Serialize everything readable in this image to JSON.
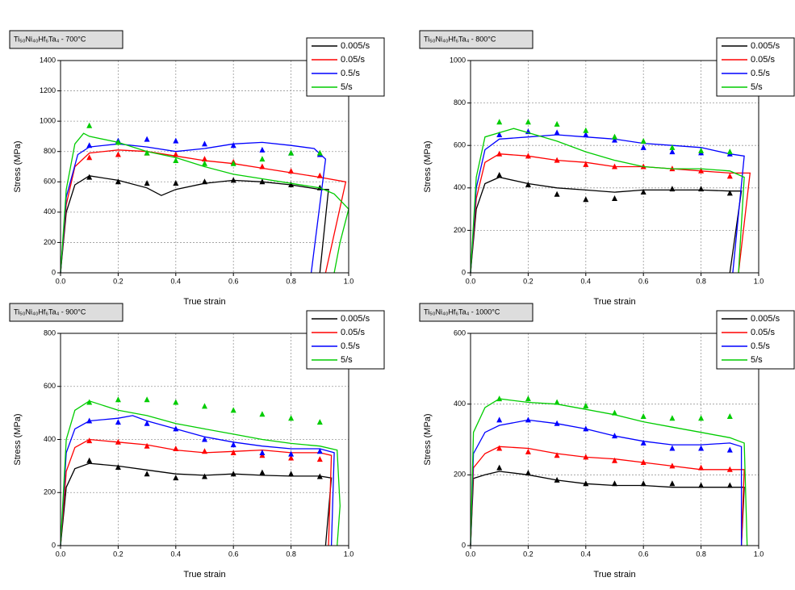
{
  "chart_data": [
    {
      "type": "line",
      "title": "Ti₅₀Ni₄₀Hf₆Ta₄ - 700°C",
      "x_label": "True strain",
      "y_label": "Stress (MPa)",
      "xlim": [
        0,
        1
      ],
      "xticks": [
        {
          "value": 0,
          "label": "0.0"
        },
        0.2,
        0.4,
        0.6,
        0.8,
        {
          "value": 1,
          "label": "1.0"
        }
      ],
      "ylim": [
        0,
        1400
      ],
      "yticks": [
        0,
        200,
        400,
        600,
        800,
        1000,
        1200,
        1400
      ],
      "grid": true,
      "points_x": [
        0.1,
        0.2,
        0.3,
        0.4,
        0.5,
        0.6,
        0.7,
        0.8,
        0.9
      ],
      "series": [
        {
          "name": "0.005/s",
          "color": "#000000",
          "x": [
            0,
            0.02,
            0.05,
            0.1,
            0.2,
            0.3,
            0.35,
            0.4,
            0.5,
            0.6,
            0.7,
            0.8,
            0.9,
            0.93,
            0.9
          ],
          "values": [
            0,
            400,
            580,
            640,
            610,
            560,
            510,
            550,
            590,
            610,
            600,
            580,
            550,
            550,
            0
          ],
          "points": [
            630,
            600,
            590,
            590,
            600,
            610,
            600,
            580,
            560
          ]
        },
        {
          "name": "0.05/s",
          "color": "#ff0000",
          "x": [
            0,
            0.02,
            0.05,
            0.1,
            0.2,
            0.3,
            0.4,
            0.5,
            0.6,
            0.7,
            0.8,
            0.9,
            0.99,
            0.92
          ],
          "values": [
            0,
            450,
            700,
            790,
            810,
            800,
            770,
            740,
            720,
            690,
            660,
            630,
            600,
            0
          ],
          "points": [
            760,
            780,
            790,
            780,
            750,
            730,
            700,
            670,
            640
          ]
        },
        {
          "name": "0.5/s",
          "color": "#0000ff",
          "x": [
            0,
            0.02,
            0.06,
            0.1,
            0.2,
            0.3,
            0.4,
            0.5,
            0.6,
            0.7,
            0.8,
            0.88,
            0.92,
            0.87
          ],
          "values": [
            0,
            500,
            780,
            830,
            850,
            830,
            800,
            820,
            850,
            860,
            840,
            820,
            750,
            0
          ],
          "points": [
            840,
            870,
            880,
            870,
            850,
            840,
            810,
            790,
            780
          ]
        },
        {
          "name": "5/s",
          "color": "#00cc00",
          "x": [
            0,
            0.02,
            0.05,
            0.08,
            0.1,
            0.2,
            0.3,
            0.4,
            0.5,
            0.6,
            0.7,
            0.8,
            0.9,
            0.95,
            1,
            0.97,
            0.95
          ],
          "values": [
            0,
            550,
            850,
            920,
            900,
            860,
            800,
            760,
            700,
            650,
            620,
            590,
            560,
            520,
            420,
            200,
            0
          ],
          "points": [
            970,
            860,
            790,
            740,
            720,
            720,
            750,
            790,
            790
          ]
        }
      ]
    },
    {
      "type": "line",
      "title": "Ti₅₀Ni₄₀Hf₆Ta₄ - 800°C",
      "x_label": "True strain",
      "y_label": "Stress (MPa)",
      "xlim": [
        0,
        1
      ],
      "xticks": [
        {
          "value": 0,
          "label": "0.0"
        },
        0.2,
        0.4,
        0.6,
        0.8,
        {
          "value": 1,
          "label": "1.0"
        }
      ],
      "ylim": [
        0,
        1000
      ],
      "yticks": [
        0,
        200,
        400,
        600,
        800,
        1000
      ],
      "grid": true,
      "points_x": [
        0.1,
        0.2,
        0.3,
        0.4,
        0.5,
        0.6,
        0.7,
        0.8,
        0.9
      ],
      "series": [
        {
          "name": "0.005/s",
          "color": "#000000",
          "x": [
            0,
            0.02,
            0.05,
            0.1,
            0.2,
            0.3,
            0.4,
            0.5,
            0.6,
            0.7,
            0.8,
            0.9,
            0.94,
            0.9
          ],
          "values": [
            0,
            300,
            420,
            450,
            420,
            400,
            390,
            380,
            390,
            390,
            390,
            385,
            385,
            0
          ],
          "points": [
            460,
            415,
            370,
            345,
            350,
            380,
            395,
            395,
            375
          ]
        },
        {
          "name": "0.05/s",
          "color": "#ff0000",
          "x": [
            0,
            0.02,
            0.05,
            0.1,
            0.2,
            0.3,
            0.4,
            0.5,
            0.6,
            0.7,
            0.8,
            0.9,
            0.97,
            0.93
          ],
          "values": [
            0,
            350,
            520,
            560,
            550,
            530,
            520,
            500,
            500,
            490,
            480,
            470,
            470,
            0
          ],
          "points": [
            560,
            550,
            530,
            510,
            500,
            500,
            490,
            480,
            455
          ]
        },
        {
          "name": "0.5/s",
          "color": "#0000ff",
          "x": [
            0,
            0.02,
            0.05,
            0.1,
            0.2,
            0.3,
            0.4,
            0.5,
            0.6,
            0.7,
            0.8,
            0.9,
            0.95,
            0.91
          ],
          "values": [
            0,
            400,
            580,
            630,
            640,
            650,
            640,
            630,
            610,
            600,
            590,
            560,
            550,
            0
          ],
          "points": [
            650,
            665,
            660,
            650,
            625,
            590,
            570,
            565,
            560
          ]
        },
        {
          "name": "5/s",
          "color": "#00cc00",
          "x": [
            0,
            0.02,
            0.05,
            0.1,
            0.15,
            0.2,
            0.3,
            0.4,
            0.5,
            0.6,
            0.7,
            0.8,
            0.9,
            0.95,
            0.93
          ],
          "values": [
            0,
            450,
            640,
            660,
            680,
            660,
            620,
            570,
            530,
            500,
            490,
            490,
            480,
            450,
            0
          ],
          "points": [
            710,
            710,
            700,
            670,
            640,
            620,
            590,
            575,
            570
          ]
        }
      ]
    },
    {
      "type": "line",
      "title": "Ti₅₀Ni₄₀Hf₆Ta₄ - 900°C",
      "x_label": "True strain",
      "y_label": "Stress (MPa)",
      "xlim": [
        0,
        1
      ],
      "xticks": [
        {
          "value": 0,
          "label": "0.0"
        },
        0.2,
        0.4,
        0.6,
        0.8,
        {
          "value": 1,
          "label": "1.0"
        }
      ],
      "ylim": [
        0,
        800
      ],
      "yticks": [
        0,
        200,
        400,
        600,
        800
      ],
      "grid": true,
      "points_x": [
        0.1,
        0.2,
        0.3,
        0.4,
        0.5,
        0.6,
        0.7,
        0.8,
        0.9
      ],
      "series": [
        {
          "name": "0.005/s",
          "color": "#000000",
          "x": [
            0,
            0.02,
            0.05,
            0.1,
            0.2,
            0.3,
            0.4,
            0.5,
            0.6,
            0.7,
            0.8,
            0.9,
            0.94,
            0.92
          ],
          "values": [
            0,
            220,
            290,
            310,
            300,
            285,
            270,
            265,
            270,
            265,
            262,
            262,
            255,
            0
          ],
          "points": [
            320,
            295,
            270,
            255,
            260,
            270,
            275,
            270,
            260
          ]
        },
        {
          "name": "0.05/s",
          "color": "#ff0000",
          "x": [
            0,
            0.02,
            0.05,
            0.1,
            0.2,
            0.3,
            0.4,
            0.5,
            0.6,
            0.7,
            0.8,
            0.9,
            0.94,
            0.93
          ],
          "values": [
            0,
            280,
            370,
            400,
            390,
            380,
            360,
            350,
            355,
            360,
            350,
            350,
            340,
            0
          ],
          "points": [
            395,
            390,
            375,
            365,
            355,
            350,
            340,
            330,
            325
          ]
        },
        {
          "name": "0.5/s",
          "color": "#0000ff",
          "x": [
            0,
            0.02,
            0.05,
            0.1,
            0.2,
            0.25,
            0.3,
            0.4,
            0.5,
            0.6,
            0.7,
            0.8,
            0.9,
            0.95,
            0.94
          ],
          "values": [
            0,
            350,
            440,
            470,
            480,
            490,
            470,
            440,
            410,
            390,
            375,
            365,
            365,
            350,
            0
          ],
          "points": [
            470,
            465,
            460,
            440,
            400,
            380,
            350,
            345,
            355
          ]
        },
        {
          "name": "5/s",
          "color": "#00cc00",
          "x": [
            0,
            0.02,
            0.05,
            0.1,
            0.2,
            0.3,
            0.4,
            0.5,
            0.6,
            0.7,
            0.8,
            0.9,
            0.96,
            0.97,
            0.96
          ],
          "values": [
            0,
            400,
            510,
            545,
            510,
            490,
            460,
            440,
            420,
            400,
            385,
            375,
            360,
            150,
            0
          ],
          "points": [
            540,
            550,
            550,
            540,
            525,
            510,
            495,
            480,
            465
          ]
        }
      ]
    },
    {
      "type": "line",
      "title": "Ti₅₀Ni₄₀Hf₆Ta₄ - 1000°C",
      "x_label": "True strain",
      "y_label": "Stress (MPa)",
      "xlim": [
        0,
        1
      ],
      "xticks": [
        {
          "value": 0,
          "label": "0.0"
        },
        0.2,
        0.4,
        0.6,
        0.8,
        {
          "value": 1,
          "label": "1.0"
        }
      ],
      "ylim": [
        0,
        600
      ],
      "yticks": [
        0,
        200,
        400,
        600
      ],
      "grid": true,
      "points_x": [
        0.1,
        0.2,
        0.3,
        0.4,
        0.5,
        0.6,
        0.7,
        0.8,
        0.9
      ],
      "series": [
        {
          "name": "0.005/s",
          "color": "#000000",
          "x": [
            0,
            0.01,
            0.05,
            0.1,
            0.2,
            0.3,
            0.4,
            0.5,
            0.6,
            0.7,
            0.8,
            0.9,
            0.95,
            0.94
          ],
          "values": [
            0,
            190,
            200,
            210,
            200,
            185,
            175,
            170,
            170,
            165,
            165,
            165,
            165,
            0
          ],
          "points": [
            220,
            205,
            185,
            175,
            175,
            175,
            175,
            170,
            170
          ]
        },
        {
          "name": "0.05/s",
          "color": "#ff0000",
          "x": [
            0,
            0.01,
            0.05,
            0.1,
            0.2,
            0.3,
            0.4,
            0.5,
            0.6,
            0.7,
            0.8,
            0.9,
            0.95,
            0.94
          ],
          "values": [
            0,
            220,
            260,
            280,
            275,
            260,
            250,
            245,
            235,
            225,
            215,
            215,
            215,
            0
          ],
          "points": [
            275,
            265,
            255,
            250,
            240,
            235,
            225,
            220,
            215
          ]
        },
        {
          "name": "0.5/s",
          "color": "#0000ff",
          "x": [
            0,
            0.01,
            0.05,
            0.1,
            0.2,
            0.3,
            0.4,
            0.5,
            0.6,
            0.7,
            0.8,
            0.9,
            0.94,
            0.94
          ],
          "values": [
            0,
            260,
            320,
            340,
            355,
            345,
            330,
            310,
            295,
            285,
            285,
            290,
            280,
            0
          ],
          "points": [
            355,
            355,
            345,
            330,
            310,
            290,
            275,
            275,
            270
          ]
        },
        {
          "name": "5/s",
          "color": "#00cc00",
          "x": [
            0,
            0.01,
            0.05,
            0.1,
            0.2,
            0.3,
            0.4,
            0.5,
            0.6,
            0.7,
            0.8,
            0.9,
            0.95,
            0.96
          ],
          "values": [
            0,
            320,
            390,
            415,
            405,
            400,
            385,
            370,
            350,
            335,
            320,
            305,
            290,
            0
          ],
          "points": [
            415,
            415,
            405,
            395,
            375,
            365,
            360,
            360,
            365
          ]
        }
      ]
    }
  ]
}
